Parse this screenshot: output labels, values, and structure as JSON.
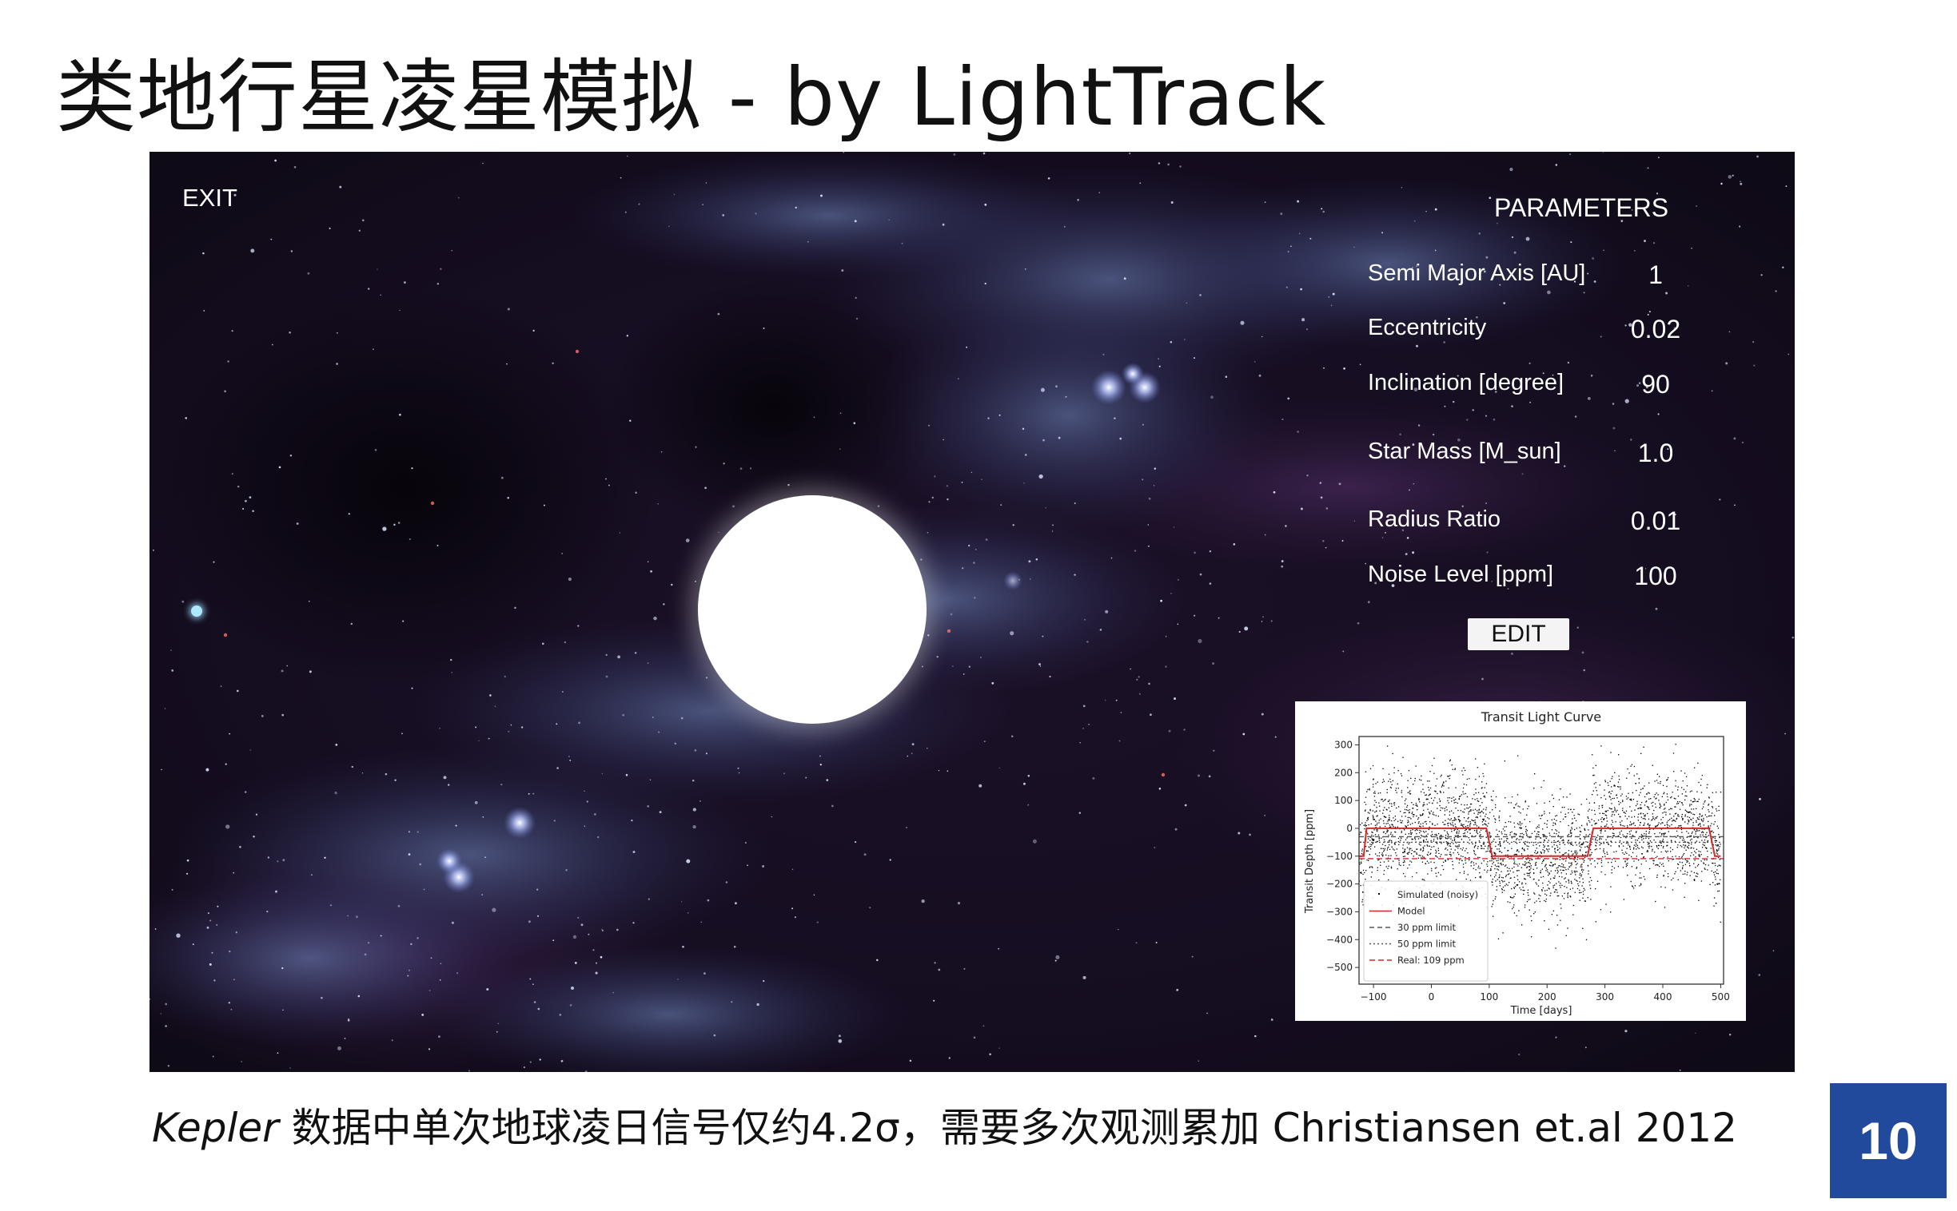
{
  "slide": {
    "title": "类地行星凌星模拟 - by LightTrack",
    "caption_italic": "Kepler",
    "caption_rest": " 数据中单次地球凌日信号仅约4.2σ，需要多次观测累加 Christiansen et.al 2012",
    "page_number": "10"
  },
  "app": {
    "exit_label": "EXIT",
    "parameters_title": "PARAMETERS",
    "parameters": [
      {
        "label": "Semi Major Axis [AU]",
        "value": "1"
      },
      {
        "label": "Eccentricity",
        "value": "0.02"
      },
      {
        "label": "Inclination [degree]",
        "value": "90"
      },
      {
        "label": "Star Mass [M_sun]",
        "value": "1.0"
      },
      {
        "label": "Radius Ratio",
        "value": "0.01"
      },
      {
        "label": "Noise Level [ppm]",
        "value": "100"
      }
    ],
    "edit_label": "EDIT"
  },
  "chart_data": {
    "type": "scatter",
    "title": "Transit Light Curve",
    "xlabel": "Time [days]",
    "ylabel": "Transit Depth [ppm]",
    "xlim": [
      -125,
      505
    ],
    "ylim": [
      -560,
      330
    ],
    "x_ticks": [
      -100,
      0,
      100,
      200,
      300,
      400,
      500
    ],
    "y_ticks": [
      300,
      200,
      100,
      0,
      -100,
      -200,
      -300,
      -400,
      -500
    ],
    "legend_position": "lower-left",
    "colors": {
      "scatter": "#000000",
      "model": "#d62728",
      "limit_30": "#555555",
      "limit_50": "#555555",
      "real": "#d62728"
    },
    "series": [
      {
        "name": "Simulated (noisy)",
        "kind": "scatter",
        "noise_sigma_ppm": 100,
        "x_range": [
          -125,
          500
        ]
      },
      {
        "name": "Model",
        "kind": "line",
        "x": [
          -125,
          -117,
          -112,
          95,
          100,
          105,
          270,
          275,
          280,
          480,
          485,
          490,
          500
        ],
        "y": [
          -100,
          -100,
          0,
          0,
          -50,
          -100,
          -100,
          -50,
          0,
          0,
          -50,
          -100,
          -100
        ]
      },
      {
        "name": "30 ppm limit",
        "kind": "hline",
        "y": -30
      },
      {
        "name": "50 ppm limit",
        "kind": "hline",
        "y": -50
      },
      {
        "name": "Real: 109 ppm",
        "kind": "hline",
        "y": -109
      }
    ]
  }
}
